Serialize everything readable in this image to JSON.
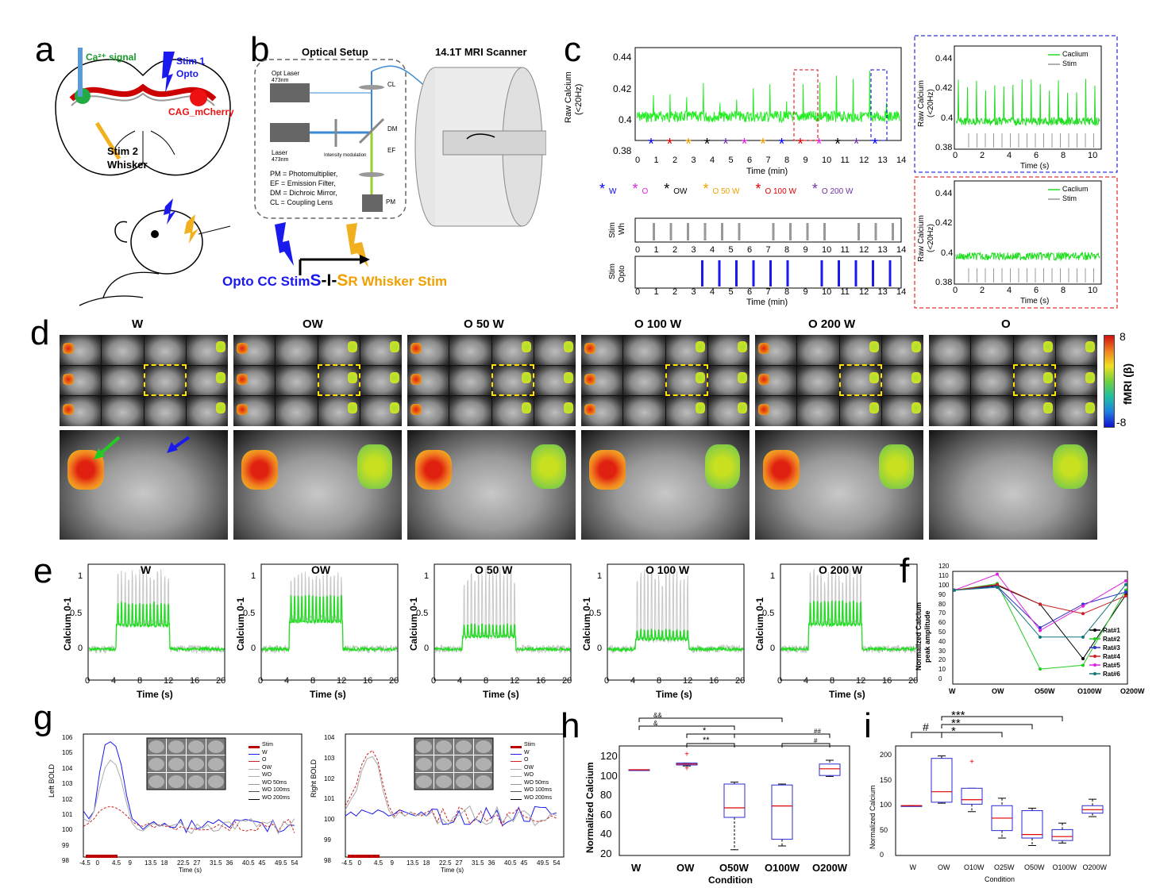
{
  "letters": [
    "a",
    "b",
    "c",
    "d",
    "e",
    "f",
    "g",
    "h",
    "i"
  ],
  "panel_a": {
    "ca_signal": "Ca²⁺ signal",
    "stim1": "Stim 1",
    "opto": "Opto",
    "cag": "CAG_mCherry",
    "stim2": "Stim 2",
    "whisker": "Whisker"
  },
  "panel_b": {
    "optical_setup": "Optical Setup",
    "mri": "14.1T MRI Scanner",
    "opt_laser": "Opt Laser",
    "opt_laser_nm": "473nm",
    "laser": "Laser",
    "laser_nm": "473nm",
    "intensity": "Intensity modulation",
    "cl": "CL",
    "dm": "DM",
    "ef": "EF",
    "pm": "PM",
    "legend1": "PM = Photomultiplier,",
    "legend2": "EF = Emission Filter,",
    "legend3": "DM = Dichroic Mirror,",
    "legend4": "CL = Coupling Lens",
    "opto_cc": "Opto CC Stim",
    "sis_s1": "S",
    "sis_i": "-I-",
    "sis_s2": "S",
    "r_whisker": "R Whisker Stim"
  },
  "panel_c": {
    "ylabel1": "Raw Calcium",
    "ylabel2": "(<20Hz)",
    "xlabel": "Time (min)",
    "yticks": [
      "0.44",
      "0.42",
      "0.4",
      "0.38"
    ],
    "xticks": [
      "0",
      "1",
      "2",
      "3",
      "4",
      "5",
      "6",
      "7",
      "8",
      "9",
      "10",
      "11",
      "12",
      "13",
      "14"
    ],
    "legend_items": [
      {
        "sym": "*",
        "label": "W",
        "color": "#0000ff"
      },
      {
        "sym": "*",
        "label": "O",
        "color": "#e020e0"
      },
      {
        "sym": "*",
        "label": "OW",
        "color": "#000000"
      },
      {
        "sym": "*",
        "label": "O 50 W",
        "color": "#f0a000"
      },
      {
        "sym": "*",
        "label": "O 100 W",
        "color": "#e00000"
      },
      {
        "sym": "*",
        "label": "O 200 W",
        "color": "#7030a0"
      }
    ],
    "stim_wh1": "Stim",
    "stim_wh2": "Wh",
    "stim_opto1": "Stim",
    "stim_opto2": "Opto",
    "inset_xlabel": "Time (s)",
    "inset_xticks": [
      "0",
      "2",
      "4",
      "6",
      "8",
      "10"
    ],
    "inset_legend_calcium": "Caclium",
    "inset_legend_stim": "Stim"
  },
  "panel_d": {
    "titles": [
      "W",
      "OW",
      "O 50 W",
      "O 100 W",
      "O 200 W",
      "O"
    ],
    "colorbar_label": "fMRI (β)",
    "colorbar_max": "8",
    "colorbar_min": "-8"
  },
  "panel_e": {
    "titles": [
      "W",
      "OW",
      "O 50 W",
      "O 100 W",
      "O 200 W"
    ],
    "ylabel": "Calcium 0-1",
    "xlabel": "Time (s)",
    "yticks": [
      "1",
      "0.5",
      "0"
    ],
    "xticks": [
      "0",
      "4",
      "8",
      "12",
      "16",
      "20"
    ]
  },
  "panel_f": {
    "ylabel1": "Normalized Calcium",
    "ylabel2": "peak amplitude",
    "categories": [
      "W",
      "OW",
      "O50W",
      "O100W",
      "O200W"
    ],
    "yticks": [
      "0",
      "10",
      "20",
      "30",
      "40",
      "50",
      "60",
      "70",
      "80",
      "90",
      "100",
      "110",
      "120"
    ],
    "legend": [
      "Rat#1",
      "Rat#2",
      "Rat#3",
      "Rat#4",
      "Rat#5",
      "Rat#6"
    ]
  },
  "panel_g": {
    "left_ylabel": "Left BOLD",
    "right_ylabel": "Right BOLD",
    "xlabel": "Time (s)",
    "left_yticks": [
      "106",
      "105",
      "104",
      "103",
      "102",
      "101",
      "100",
      "99",
      "98"
    ],
    "right_yticks": [
      "104",
      "103",
      "102",
      "101",
      "100",
      "99",
      "98"
    ],
    "xticks": [
      "-4.5",
      "0",
      "4.5",
      "9",
      "13.5",
      "18",
      "22.5",
      "27",
      "31.5",
      "36",
      "40.5",
      "45",
      "49.5",
      "54"
    ],
    "legend": [
      "Stim",
      "W",
      "O",
      "OW",
      "WO",
      "WO 50ms",
      "WO 100ms",
      "WO 200ms"
    ]
  },
  "panel_h": {
    "ylabel": "Normalized Calcium",
    "xlabel": "Condition",
    "categories": [
      "W",
      "OW",
      "O50W",
      "O100W",
      "O200W"
    ],
    "yticks": [
      "20",
      "40",
      "60",
      "80",
      "100",
      "120"
    ],
    "sig": [
      "&&",
      "&",
      "*",
      "**",
      "##",
      "#"
    ]
  },
  "panel_i": {
    "ylabel": "Normalized Calcium",
    "xlabel": "Condition",
    "categories": [
      "W",
      "OW",
      "O10W",
      "O25W",
      "O50W",
      "O100W",
      "O200W"
    ],
    "yticks": [
      "0",
      "50",
      "100",
      "150",
      "200"
    ],
    "sig": [
      "#",
      "***",
      "**",
      "*"
    ]
  },
  "chart_data": [
    {
      "type": "line",
      "panel": "f",
      "categories": [
        "W",
        "OW",
        "O50W",
        "O100W",
        "O200W"
      ],
      "ylim": [
        0,
        120
      ],
      "series": [
        {
          "name": "Rat#1",
          "values": [
            100,
            105,
            85,
            27,
            95
          ],
          "color": "#000000"
        },
        {
          "name": "Rat#2",
          "values": [
            100,
            107,
            16,
            20,
            100
          ],
          "color": "#22cc22"
        },
        {
          "name": "Rat#3",
          "values": [
            100,
            104,
            60,
            85,
            98
          ],
          "color": "#3333cc"
        },
        {
          "name": "Rat#4",
          "values": [
            100,
            106,
            85,
            75,
            94
          ],
          "color": "#cc2222"
        },
        {
          "name": "Rat#5",
          "values": [
            100,
            117,
            57,
            83,
            110
          ],
          "color": "#dd22dd"
        },
        {
          "name": "Rat#6",
          "values": [
            100,
            103,
            50,
            50,
            106
          ],
          "color": "#117777"
        }
      ]
    },
    {
      "type": "box",
      "panel": "h",
      "categories": [
        "W",
        "OW",
        "O50W",
        "O100W",
        "O200W"
      ],
      "ylim": [
        10,
        125
      ],
      "boxes": [
        {
          "min": 100,
          "q1": 100,
          "median": 100,
          "q3": 100,
          "max": 100
        },
        {
          "min": 104,
          "q1": 105,
          "median": 106,
          "q3": 107,
          "max": 107
        },
        {
          "min": 16,
          "q1": 50,
          "median": 60,
          "q3": 85,
          "max": 87
        },
        {
          "min": 20,
          "q1": 27,
          "median": 62,
          "q3": 84,
          "max": 85
        },
        {
          "min": 93,
          "q1": 94,
          "median": 101,
          "q3": 106,
          "max": 110
        }
      ],
      "outliers": [
        {
          "cat": "OW",
          "value": 117
        },
        {
          "cat": "OW",
          "value": 102
        }
      ]
    },
    {
      "type": "box",
      "panel": "i",
      "categories": [
        "W",
        "OW",
        "O10W",
        "O25W",
        "O50W",
        "O100W",
        "O200W"
      ],
      "ylim": [
        0,
        220
      ],
      "boxes": [
        {
          "min": 100,
          "q1": 100,
          "median": 100,
          "q3": 100,
          "max": 100
        },
        {
          "min": 105,
          "q1": 107,
          "median": 128,
          "q3": 195,
          "max": 200
        },
        {
          "min": 88,
          "q1": 103,
          "median": 112,
          "q3": 135,
          "max": 135
        },
        {
          "min": 35,
          "q1": 50,
          "median": 75,
          "q3": 100,
          "max": 115
        },
        {
          "min": 20,
          "q1": 35,
          "median": 42,
          "q3": 90,
          "max": 95
        },
        {
          "min": 25,
          "q1": 30,
          "median": 38,
          "q3": 52,
          "max": 65
        },
        {
          "min": 78,
          "q1": 85,
          "median": 92,
          "q3": 100,
          "max": 113
        }
      ],
      "outliers": [
        {
          "cat": "O10W",
          "value": 190
        }
      ]
    },
    {
      "type": "line",
      "panel": "g-left",
      "x": [
        -4.5,
        -3,
        -1.5,
        0,
        1.5,
        3,
        4.5,
        6,
        7.5,
        9,
        10.5,
        12,
        13.5,
        15,
        16.5,
        18
      ],
      "xlim": [
        -4.5,
        56
      ],
      "ylim": [
        98,
        106
      ],
      "series": [
        {
          "name": "W",
          "values": [
            101,
            100.5,
            101,
            103.5,
            105.3,
            105.5,
            105.2,
            104,
            102,
            100.5,
            100.2,
            99.8,
            100.1,
            100.3,
            100,
            100.2
          ]
        },
        {
          "name": "O",
          "values": [
            100,
            100.2,
            100.5,
            101,
            101.2,
            101.3,
            101.2,
            101,
            100.7,
            100.3,
            100.1,
            100,
            100.2,
            99.9,
            100.1,
            100
          ]
        },
        {
          "name": "OW",
          "values": [
            100.5,
            100.3,
            101,
            102.5,
            103.8,
            104.3,
            104,
            103,
            101.5,
            100.2,
            99.8,
            99.7,
            100,
            100.2,
            100,
            100.1
          ]
        }
      ]
    },
    {
      "type": "line",
      "panel": "g-right",
      "x": [
        -4.5,
        -3,
        -1.5,
        0,
        1.5,
        3,
        4.5,
        6,
        7.5,
        9,
        10.5,
        12,
        13.5,
        15,
        16.5,
        18
      ],
      "xlim": [
        -4.5,
        56
      ],
      "ylim": [
        98,
        104
      ],
      "series": [
        {
          "name": "W",
          "values": [
            100,
            100.2,
            100,
            100.3,
            100.2,
            100.1,
            100.3,
            100.2,
            100,
            100.1,
            100.3,
            100.2,
            100.1,
            100,
            100.2,
            100
          ]
        },
        {
          "name": "O",
          "values": [
            100.5,
            101,
            101.5,
            102.5,
            103,
            103.2,
            102.7,
            101.5,
            100.5,
            100,
            100.3,
            100,
            100.2,
            100.1,
            100,
            100.2
          ]
        },
        {
          "name": "OW",
          "values": [
            100.3,
            100.8,
            101.2,
            102.2,
            102.8,
            102.9,
            102.5,
            101.2,
            100.3,
            99.9,
            100.2,
            100,
            100.2,
            100,
            100.1,
            100
          ]
        }
      ]
    }
  ]
}
